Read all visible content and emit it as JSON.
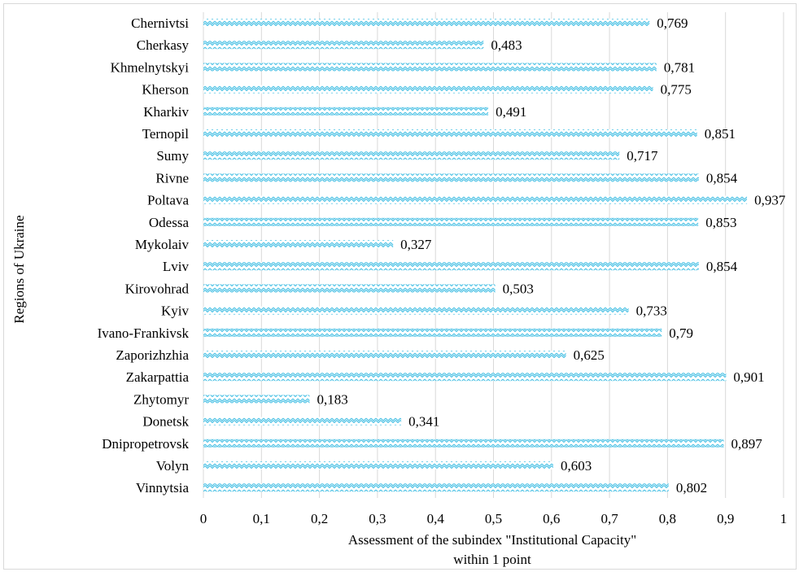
{
  "chart_data": {
    "type": "bar",
    "orientation": "horizontal",
    "title": "",
    "xlabel_lines": [
      "Assessment of the subindex \"Institutional Capacity\"",
      "within 1 point"
    ],
    "ylabel": "Regions of Ukraine",
    "xlim": [
      0,
      1
    ],
    "x_ticks": [
      "0",
      "0,1",
      "0,2",
      "0,3",
      "0,4",
      "0,5",
      "0,6",
      "0,7",
      "0,8",
      "0,9",
      "1"
    ],
    "grid": "vertical",
    "bar_color": "#5bc8e8",
    "bar_pattern": "zigzag",
    "categories": [
      "Chernivtsi",
      "Cherkasy",
      "Khmelnytskyi",
      "Kherson",
      "Kharkiv",
      "Ternopil",
      "Sumy",
      "Rivne",
      "Poltava",
      "Odessa",
      "Mykolaiv",
      "Lviv",
      "Kirovohrad",
      "Kyiv",
      "Ivano-Frankivsk",
      "Zaporizhzhia",
      "Zakarpattia",
      "Zhytomyr",
      "Donetsk",
      "Dnipropetrovsk",
      "Volyn",
      "Vinnytsia"
    ],
    "values": [
      0.769,
      0.483,
      0.781,
      0.775,
      0.491,
      0.851,
      0.717,
      0.854,
      0.937,
      0.853,
      0.327,
      0.854,
      0.503,
      0.733,
      0.79,
      0.625,
      0.901,
      0.183,
      0.341,
      0.897,
      0.603,
      0.802
    ],
    "value_labels": [
      "0,769",
      "0,483",
      "0,781",
      "0,775",
      "0,491",
      "0,851",
      "0,717",
      "0,854",
      "0,937",
      "0,853",
      "0,327",
      "0,854",
      "0,503",
      "0,733",
      "0,79",
      "0,625",
      "0,901",
      "0,183",
      "0,341",
      "0,897",
      "0,603",
      "0,802"
    ]
  }
}
